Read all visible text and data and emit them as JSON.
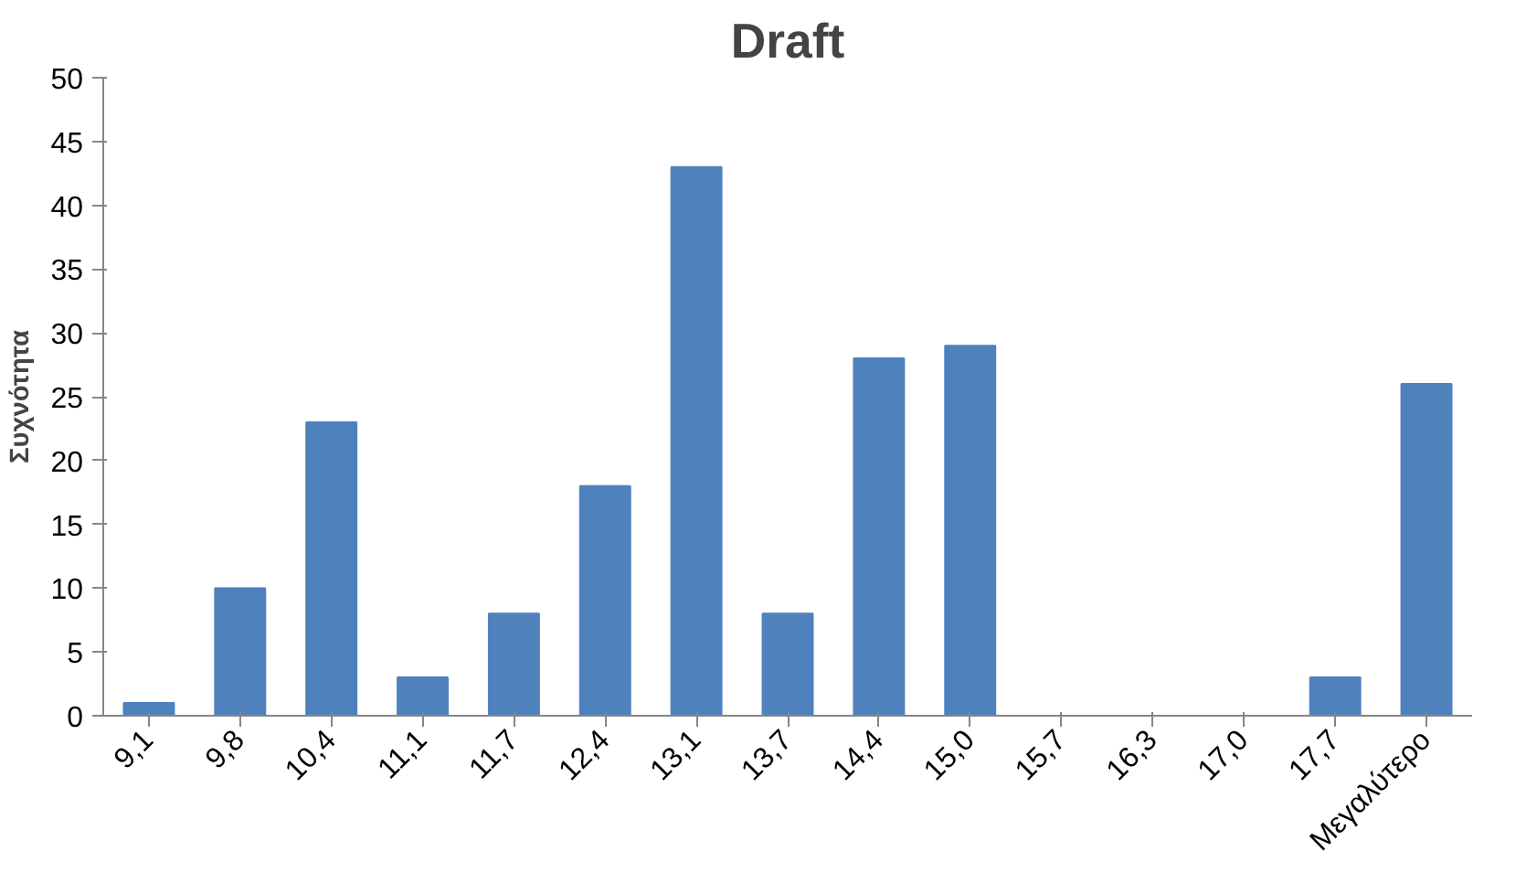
{
  "chart_data": {
    "type": "bar",
    "title": "Draft",
    "ylabel": "Συχνότητα",
    "categories": [
      "9,1",
      "9,8",
      "10,4",
      "11,1",
      "11,7",
      "12,4",
      "13,1",
      "13,7",
      "14,4",
      "15,0",
      "15,7",
      "16,3",
      "17,0",
      "17,7",
      "Μεγαλύτερο"
    ],
    "values": [
      1,
      10,
      23,
      3,
      8,
      18,
      43,
      8,
      28,
      29,
      0,
      0,
      0,
      3,
      26
    ],
    "color": "#4f81bd",
    "ylim": [
      0,
      50
    ],
    "yticks": [
      0,
      5,
      10,
      15,
      20,
      25,
      30,
      35,
      40,
      45,
      50
    ],
    "grid": false
  }
}
